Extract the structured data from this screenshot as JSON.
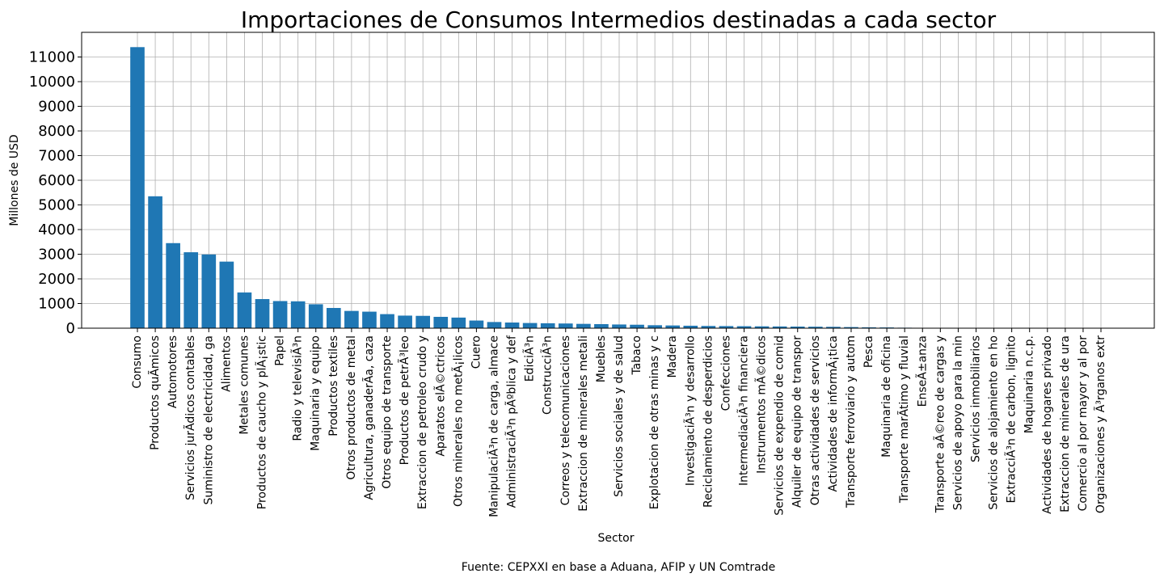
{
  "chart_data": {
    "type": "bar",
    "title": "Importaciones de Consumos Intermedios destinadas a cada sector",
    "xlabel": "Sector",
    "ylabel": "Millones de USD",
    "source": "Fuente: CEPXXI en base a Aduana, AFIP y UN Comtrade",
    "ylim": [
      0,
      12000
    ],
    "yticks": [
      0,
      1000,
      2000,
      3000,
      4000,
      5000,
      6000,
      7000,
      8000,
      9000,
      10000,
      11000
    ],
    "grid": true,
    "bar_color": "#1f77b4",
    "categories": [
      "Consumo",
      "Productos quÃ­micos",
      "Automotores",
      "Servicios jurÃ­dicos contables",
      "Suministro de electricidad, ga",
      "Alimentos",
      "Metales comunes",
      "Productos de caucho y plÃ¡stic",
      "Papel",
      "Radio y televisiÃ³n",
      "Maquinaria y equipo",
      "Productos textiles",
      "Otros productos de metal",
      "Agricultura, ganaderÃ­a, caza",
      "Otros equipo de transporte",
      "Productos de petrÃ³leo",
      "Extraccion de petroleo crudo y",
      "Aparatos elÃ©ctricos",
      "Otros minerales no metÃ¡licos",
      "Cuero",
      "ManipulaciÃ³n de carga, almace",
      "AdministraciÃ³n pÃºblica y def",
      "EdiciÃ³n",
      "ConstrucciÃ³n",
      "Correos y telecomunicaciones",
      "Extraccion de minerales metali",
      "Muebles",
      "Servicios sociales y de salud",
      "Tabaco",
      "Explotacion de otras minas y c",
      "Madera",
      "InvestigaciÃ³n y desarrollo",
      "Reciclamiento de desperdicios",
      "Confecciones",
      "IntermediaciÃ³n financiera",
      "Instrumentos mÃ©dicos",
      "Servicios de expendio de comid",
      "Alquiler de equipo de transpor",
      "Otras actividades de servicios",
      "Actividades de informÃ¡tica",
      "Transporte ferroviario y autom",
      "Pesca",
      "Maquinaria de oficina",
      "Transporte marÃ­timo y fluvial",
      "EnseÃ±anza",
      "Transporte aÃ©reo de cargas y",
      "Servicios de apoyo para la min",
      "Servicios inmobiliarios",
      "Servicios de alojamiento en ho",
      "ExtracciÃ³n de carbon, lignito",
      "Maquinaria n.c.p.",
      "Actividades de hogares privado",
      "Extraccion de minerales de ura",
      "Comercio al por mayor y al por",
      "Organizaciones y Ã³rganos extr"
    ],
    "values": [
      11400,
      5350,
      3450,
      3080,
      2990,
      2700,
      1450,
      1180,
      1100,
      1090,
      970,
      820,
      700,
      670,
      570,
      510,
      500,
      460,
      430,
      310,
      250,
      230,
      210,
      200,
      190,
      175,
      165,
      150,
      140,
      120,
      110,
      100,
      90,
      85,
      80,
      75,
      70,
      65,
      60,
      55,
      45,
      35,
      30,
      20,
      15,
      12,
      10,
      8,
      6,
      5,
      4,
      3,
      2,
      2,
      1
    ]
  }
}
